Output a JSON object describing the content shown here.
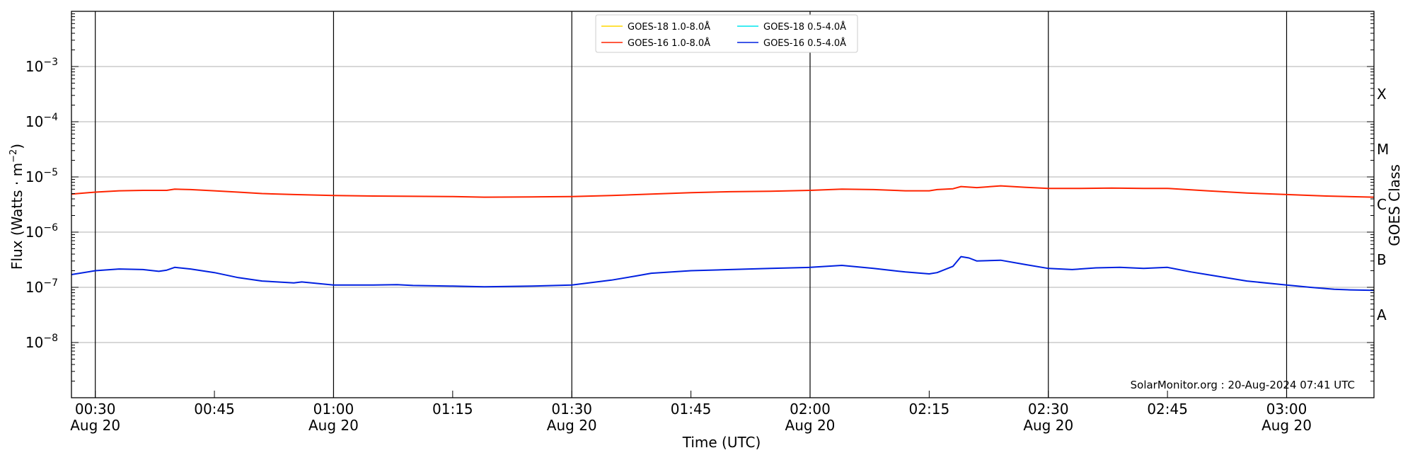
{
  "chart_data": {
    "type": "line",
    "xlabel": "Time (UTC)",
    "ylabel": "Flux (Watts · m",
    "ylabel_sup": "−2",
    "ylabel_close": ")",
    "right_label": "GOES Class",
    "y_scale": "log",
    "ylim": [
      1e-09,
      0.01
    ],
    "y_exponents": [
      -8,
      -7,
      -6,
      -5,
      -4,
      -3
    ],
    "y_tick_base": "10",
    "class_labels": [
      {
        "label": "A",
        "exp": -7.5
      },
      {
        "label": "B",
        "exp": -6.5
      },
      {
        "label": "C",
        "exp": -5.5
      },
      {
        "label": "M",
        "exp": -4.5
      },
      {
        "label": "X",
        "exp": -3.5
      }
    ],
    "xlim_minutes": [
      "00:27",
      "03:11"
    ],
    "x_ticks": [
      {
        "time": "00:30",
        "label": "00:30",
        "sub": "Aug 20",
        "major": true
      },
      {
        "time": "00:45",
        "label": "00:45",
        "sub": "",
        "major": false
      },
      {
        "time": "01:00",
        "label": "01:00",
        "sub": "Aug 20",
        "major": true
      },
      {
        "time": "01:15",
        "label": "01:15",
        "sub": "",
        "major": false
      },
      {
        "time": "01:30",
        "label": "01:30",
        "sub": "Aug 20",
        "major": true
      },
      {
        "time": "01:45",
        "label": "01:45",
        "sub": "",
        "major": false
      },
      {
        "time": "02:00",
        "label": "02:00",
        "sub": "Aug 20",
        "major": true
      },
      {
        "time": "02:15",
        "label": "02:15",
        "sub": "",
        "major": false
      },
      {
        "time": "02:30",
        "label": "02:30",
        "sub": "Aug 20",
        "major": true
      },
      {
        "time": "02:45",
        "label": "02:45",
        "sub": "",
        "major": false
      },
      {
        "time": "03:00",
        "label": "03:00",
        "sub": "Aug 20",
        "major": true
      }
    ],
    "grid": "horizontal at decades",
    "legend_position": "top-center",
    "legend": [
      {
        "name": "GOES-18 1.0-8.0Å",
        "color": "#ffd700"
      },
      {
        "name": "GOES-18 0.5-4.0Å",
        "color": "#00e5ee"
      },
      {
        "name": "GOES-16 1.0-8.0Å",
        "color": "#ff2400"
      },
      {
        "name": "GOES-16 0.5-4.0Å",
        "color": "#0020e0"
      }
    ],
    "series": [
      {
        "name": "GOES-16 1.0-8.0Å",
        "color": "#ff2400",
        "x": [
          "00:27",
          "00:30",
          "00:33",
          "00:36",
          "00:39",
          "00:40",
          "00:42",
          "00:45",
          "00:48",
          "00:51",
          "00:55",
          "01:00",
          "01:05",
          "01:10",
          "01:15",
          "01:19",
          "01:25",
          "01:30",
          "01:35",
          "01:40",
          "01:45",
          "01:50",
          "01:55",
          "02:00",
          "02:04",
          "02:08",
          "02:12",
          "02:15",
          "02:16",
          "02:18",
          "02:19",
          "02:21",
          "02:24",
          "02:27",
          "02:30",
          "02:34",
          "02:38",
          "02:42",
          "02:45",
          "02:50",
          "02:55",
          "03:00",
          "03:05",
          "03:11"
        ],
        "y": [
          4.9e-06,
          5.3e-06,
          5.6e-06,
          5.7e-06,
          5.7e-06,
          6e-06,
          5.9e-06,
          5.6e-06,
          5.3e-06,
          5e-06,
          4.8e-06,
          4.6e-06,
          4.5e-06,
          4.45e-06,
          4.4e-06,
          4.3e-06,
          4.35e-06,
          4.4e-06,
          4.6e-06,
          4.9e-06,
          5.2e-06,
          5.4e-06,
          5.5e-06,
          5.7e-06,
          6e-06,
          5.9e-06,
          5.6e-06,
          5.6e-06,
          5.9e-06,
          6.1e-06,
          6.7e-06,
          6.4e-06,
          6.9e-06,
          6.5e-06,
          6.2e-06,
          6.2e-06,
          6.3e-06,
          6.2e-06,
          6.2e-06,
          5.6e-06,
          5.1e-06,
          4.8e-06,
          4.5e-06,
          4.3e-06
        ]
      },
      {
        "name": "GOES-16 0.5-4.0Å",
        "color": "#0020e0",
        "x": [
          "00:27",
          "00:30",
          "00:33",
          "00:36",
          "00:38",
          "00:39",
          "00:40",
          "00:42",
          "00:45",
          "00:48",
          "00:51",
          "00:55",
          "00:56",
          "01:00",
          "01:05",
          "01:08",
          "01:10",
          "01:15",
          "01:19",
          "01:25",
          "01:30",
          "01:35",
          "01:38",
          "01:40",
          "01:45",
          "01:50",
          "01:55",
          "02:00",
          "02:04",
          "02:08",
          "02:12",
          "02:15",
          "02:16",
          "02:18",
          "02:19",
          "02:20",
          "02:21",
          "02:24",
          "02:27",
          "02:30",
          "02:33",
          "02:36",
          "02:39",
          "02:42",
          "02:45",
          "02:48",
          "02:50",
          "02:55",
          "03:00",
          "03:03",
          "03:06",
          "03:08",
          "03:11"
        ],
        "y": [
          1.7e-07,
          2e-07,
          2.15e-07,
          2.1e-07,
          1.95e-07,
          2.05e-07,
          2.3e-07,
          2.15e-07,
          1.85e-07,
          1.5e-07,
          1.3e-07,
          1.2e-07,
          1.25e-07,
          1.1e-07,
          1.1e-07,
          1.12e-07,
          1.08e-07,
          1.05e-07,
          1.02e-07,
          1.05e-07,
          1.1e-07,
          1.35e-07,
          1.6e-07,
          1.8e-07,
          2e-07,
          2.1e-07,
          2.2e-07,
          2.3e-07,
          2.5e-07,
          2.2e-07,
          1.9e-07,
          1.75e-07,
          1.85e-07,
          2.4e-07,
          3.6e-07,
          3.4e-07,
          3e-07,
          3.1e-07,
          2.6e-07,
          2.2e-07,
          2.1e-07,
          2.25e-07,
          2.3e-07,
          2.2e-07,
          2.3e-07,
          1.9e-07,
          1.7e-07,
          1.3e-07,
          1.1e-07,
          1e-07,
          9.2e-08,
          9e-08,
          8.8e-08
        ]
      }
    ]
  },
  "credit": "SolarMonitor.org : 20-Aug-2024 07:41 UTC"
}
